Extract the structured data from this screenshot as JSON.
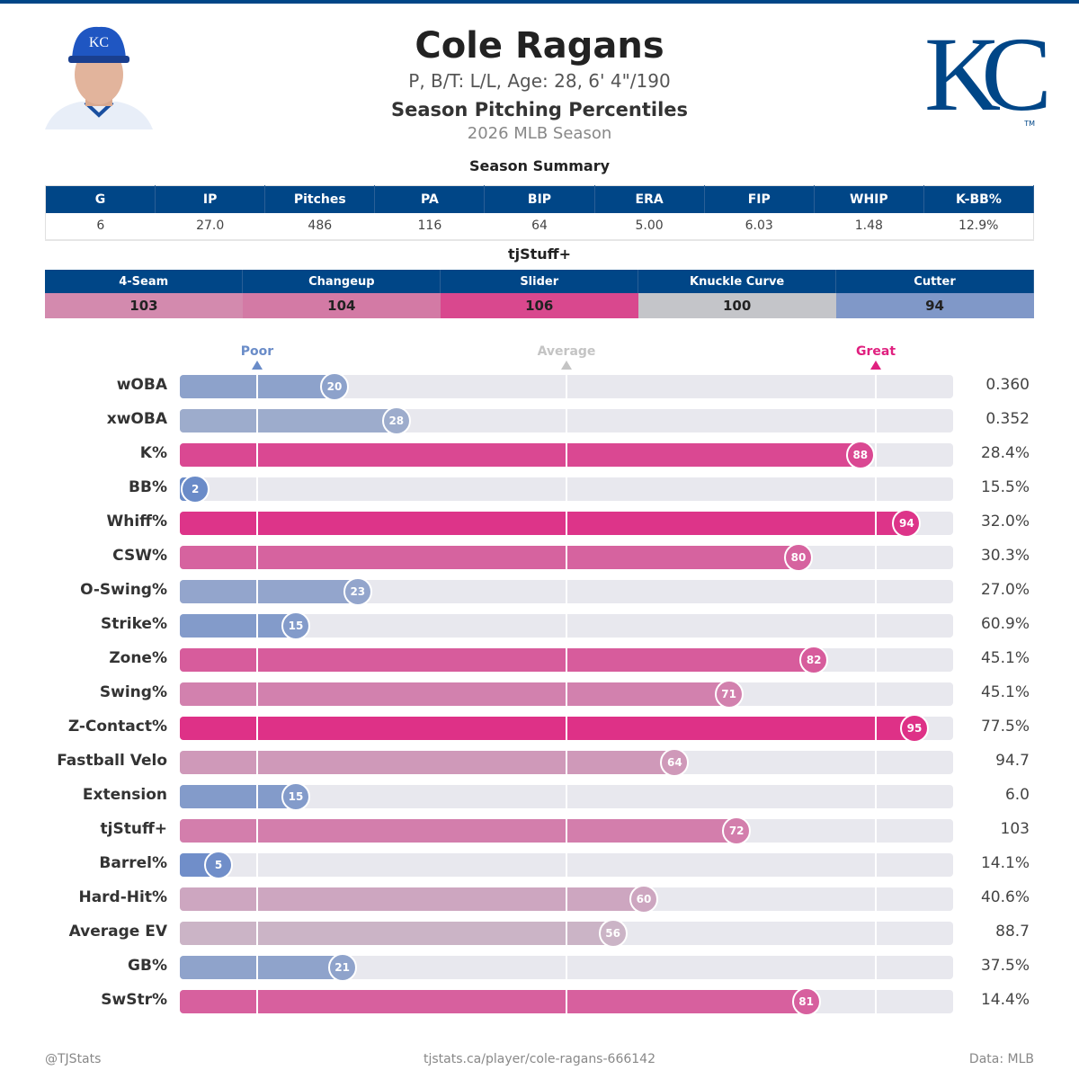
{
  "header": {
    "name": "Cole Ragans",
    "info": "P, B/T: L/L, Age: 28, 6' 4\"/190",
    "subtitle": "Season Pitching Percentiles",
    "season": "2026 MLB Season",
    "logo_text": "KC",
    "logo_tm": "TM"
  },
  "summary": {
    "title": "Season Summary",
    "headers": [
      "G",
      "IP",
      "Pitches",
      "PA",
      "BIP",
      "ERA",
      "FIP",
      "WHIP",
      "K-BB%"
    ],
    "values": [
      "6",
      "27.0",
      "486",
      "116",
      "64",
      "5.00",
      "6.03",
      "1.48",
      "12.9%"
    ]
  },
  "tjstuff": {
    "title": "tjStuff+",
    "pitches": [
      {
        "name": "4-Seam",
        "value": "103",
        "color": "#d38aae"
      },
      {
        "name": "Changeup",
        "value": "104",
        "color": "#d37aa5"
      },
      {
        "name": "Slider",
        "value": "106",
        "color": "#d9488e"
      },
      {
        "name": "Knuckle Curve",
        "value": "100",
        "color": "#c4c5c9"
      },
      {
        "name": "Cutter",
        "value": "94",
        "color": "#8098c8"
      }
    ]
  },
  "colors": {
    "brand": "#004687",
    "poor": "#6688c8",
    "average": "#c8c8d0",
    "great": "#e0207f"
  },
  "chart_data": {
    "type": "bar",
    "orientation": "horizontal",
    "xlim": [
      0,
      100
    ],
    "markers": [
      {
        "label": "Poor",
        "value": 10,
        "color": "#6a8cc8"
      },
      {
        "label": "Average",
        "value": 50,
        "color": "#c4c4c4"
      },
      {
        "label": "Great",
        "value": 90,
        "color": "#e0207f"
      }
    ],
    "rows": [
      {
        "label": "wOBA",
        "percentile": 20,
        "value": "0.360"
      },
      {
        "label": "xwOBA",
        "percentile": 28,
        "value": "0.352"
      },
      {
        "label": "K%",
        "percentile": 88,
        "value": "28.4%"
      },
      {
        "label": "BB%",
        "percentile": 2,
        "value": "15.5%"
      },
      {
        "label": "Whiff%",
        "percentile": 94,
        "value": "32.0%"
      },
      {
        "label": "CSW%",
        "percentile": 80,
        "value": "30.3%"
      },
      {
        "label": "O-Swing%",
        "percentile": 23,
        "value": "27.0%"
      },
      {
        "label": "Strike%",
        "percentile": 15,
        "value": "60.9%"
      },
      {
        "label": "Zone%",
        "percentile": 82,
        "value": "45.1%"
      },
      {
        "label": "Swing%",
        "percentile": 71,
        "value": "45.1%"
      },
      {
        "label": "Z-Contact%",
        "percentile": 95,
        "value": "77.5%"
      },
      {
        "label": "Fastball Velo",
        "percentile": 64,
        "value": "94.7"
      },
      {
        "label": "Extension",
        "percentile": 15,
        "value": "6.0"
      },
      {
        "label": "tjStuff+",
        "percentile": 72,
        "value": "103"
      },
      {
        "label": "Barrel%",
        "percentile": 5,
        "value": "14.1%"
      },
      {
        "label": "Hard-Hit%",
        "percentile": 60,
        "value": "40.6%"
      },
      {
        "label": "Average EV",
        "percentile": 56,
        "value": "88.7"
      },
      {
        "label": "GB%",
        "percentile": 21,
        "value": "37.5%"
      },
      {
        "label": "SwStr%",
        "percentile": 81,
        "value": "14.4%"
      }
    ]
  },
  "footer": {
    "left": "@TJStats",
    "center": "tjstats.ca/player/cole-ragans-666142",
    "right": "Data: MLB"
  }
}
